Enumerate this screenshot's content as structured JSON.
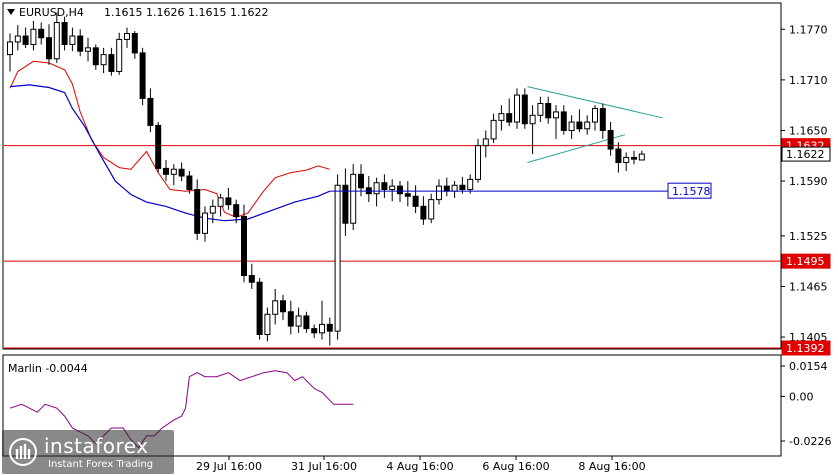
{
  "header": {
    "symbol": "EURUSD,H4",
    "ohlc": "1.1615 1.1626 1.1615 1.1622"
  },
  "indicator": {
    "label": "Marlin -0.0044",
    "ticks": [
      "0.0154",
      "0.00",
      "-0.0226"
    ],
    "color": "#8b008b"
  },
  "logo": {
    "brand": "instaforex",
    "tagline": "Instant Forex Trading"
  },
  "colors": {
    "bull": "#ffffff",
    "bear": "#000000",
    "level": "#e00000",
    "ma_slow": "#0000cc",
    "envelope": "#e00000",
    "triangle": "#2aa198",
    "axis": "#000000"
  },
  "chart_data": {
    "type": "candlestick",
    "title": "EURUSD,H4",
    "price_ticks": [
      "1.1770",
      "1.1710",
      "1.1650",
      "1.1590",
      "1.1525",
      "1.1465",
      "1.1405"
    ],
    "date_ticks": [
      "29 Jul 16:00",
      "31 Jul 16:00",
      "4 Aug 16:00",
      "6 Aug 16:00",
      "8 Aug 16:00"
    ],
    "ylim": [
      1.1392,
      1.18
    ],
    "levels": [
      {
        "label": "1.1632",
        "value": 1.1632
      },
      {
        "label": "1.1495",
        "value": 1.1495
      },
      {
        "label": "1.1392",
        "value": 1.1392
      }
    ],
    "current_price": {
      "label": "1.1622",
      "value": 1.1622
    },
    "ma_label": {
      "label": "1.1578",
      "value": 1.1578
    },
    "candles": [
      [
        1.174,
        1.1765,
        1.172,
        1.1755
      ],
      [
        1.1755,
        1.1775,
        1.1745,
        1.1762
      ],
      [
        1.1762,
        1.1772,
        1.1748,
        1.1752
      ],
      [
        1.1752,
        1.178,
        1.1745,
        1.177
      ],
      [
        1.177,
        1.1778,
        1.1752,
        1.176
      ],
      [
        1.176,
        1.1776,
        1.1728,
        1.1735
      ],
      [
        1.1735,
        1.179,
        1.173,
        1.1778
      ],
      [
        1.1778,
        1.1785,
        1.1745,
        1.1752
      ],
      [
        1.1752,
        1.1772,
        1.1744,
        1.1762
      ],
      [
        1.1762,
        1.177,
        1.1738,
        1.1744
      ],
      [
        1.1744,
        1.176,
        1.1732,
        1.1748
      ],
      [
        1.1748,
        1.1752,
        1.1722,
        1.1728
      ],
      [
        1.1728,
        1.1748,
        1.1718,
        1.174
      ],
      [
        1.174,
        1.1748,
        1.1715,
        1.172
      ],
      [
        1.172,
        1.1766,
        1.1716,
        1.1758
      ],
      [
        1.1758,
        1.1772,
        1.1748,
        1.1765
      ],
      [
        1.1765,
        1.1768,
        1.1735,
        1.1742
      ],
      [
        1.1742,
        1.1748,
        1.168,
        1.1688
      ],
      [
        1.1688,
        1.17,
        1.1648,
        1.1656
      ],
      [
        1.1656,
        1.166,
        1.16,
        1.1605
      ],
      [
        1.1605,
        1.1615,
        1.159,
        1.1598
      ],
      [
        1.1598,
        1.161,
        1.1585,
        1.1604
      ],
      [
        1.1604,
        1.1612,
        1.159,
        1.1596
      ],
      [
        1.1596,
        1.1602,
        1.1575,
        1.158
      ],
      [
        1.158,
        1.1592,
        1.152,
        1.1528
      ],
      [
        1.1528,
        1.156,
        1.1518,
        1.1552
      ],
      [
        1.1552,
        1.1568,
        1.154,
        1.156
      ],
      [
        1.156,
        1.1575,
        1.1548,
        1.157
      ],
      [
        1.157,
        1.1582,
        1.1556,
        1.1562
      ],
      [
        1.1562,
        1.1568,
        1.154,
        1.1548
      ],
      [
        1.1548,
        1.1562,
        1.147,
        1.1478
      ],
      [
        1.1478,
        1.1492,
        1.1462,
        1.147
      ],
      [
        1.147,
        1.1475,
        1.1402,
        1.1408
      ],
      [
        1.1408,
        1.144,
        1.14,
        1.1432
      ],
      [
        1.1432,
        1.1462,
        1.142,
        1.1448
      ],
      [
        1.1448,
        1.1455,
        1.1425,
        1.1435
      ],
      [
        1.1435,
        1.1448,
        1.1408,
        1.1418
      ],
      [
        1.1418,
        1.144,
        1.141,
        1.143
      ],
      [
        1.143,
        1.1435,
        1.141,
        1.1415
      ],
      [
        1.1415,
        1.142,
        1.1404,
        1.141
      ],
      [
        1.141,
        1.1448,
        1.1402,
        1.142
      ],
      [
        1.142,
        1.1428,
        1.1395,
        1.1412
      ],
      [
        1.1412,
        1.1598,
        1.1402,
        1.1585
      ],
      [
        1.1585,
        1.1605,
        1.1525,
        1.154
      ],
      [
        1.154,
        1.161,
        1.1532,
        1.1598
      ],
      [
        1.1598,
        1.161,
        1.1572,
        1.1582
      ],
      [
        1.1582,
        1.1596,
        1.1565,
        1.1575
      ],
      [
        1.1575,
        1.1594,
        1.156,
        1.1588
      ],
      [
        1.1588,
        1.1598,
        1.157,
        1.158
      ],
      [
        1.158,
        1.1592,
        1.1566,
        1.1584
      ],
      [
        1.1584,
        1.159,
        1.1565,
        1.1575
      ],
      [
        1.1575,
        1.159,
        1.156,
        1.1572
      ],
      [
        1.1572,
        1.1585,
        1.1552,
        1.156
      ],
      [
        1.156,
        1.1572,
        1.1538,
        1.1545
      ],
      [
        1.1545,
        1.1575,
        1.154,
        1.1568
      ],
      [
        1.1568,
        1.1592,
        1.1562,
        1.1584
      ],
      [
        1.1584,
        1.1594,
        1.1572,
        1.1578
      ],
      [
        1.1578,
        1.159,
        1.157,
        1.1585
      ],
      [
        1.1585,
        1.1595,
        1.1575,
        1.158
      ],
      [
        1.158,
        1.1598,
        1.1575,
        1.1592
      ],
      [
        1.1592,
        1.164,
        1.1588,
        1.1632
      ],
      [
        1.1632,
        1.165,
        1.1618,
        1.164
      ],
      [
        1.164,
        1.167,
        1.1635,
        1.1662
      ],
      [
        1.1662,
        1.168,
        1.165,
        1.167
      ],
      [
        1.167,
        1.1688,
        1.1655,
        1.166
      ],
      [
        1.166,
        1.17,
        1.1652,
        1.1692
      ],
      [
        1.1692,
        1.17,
        1.1652,
        1.1658
      ],
      [
        1.1658,
        1.168,
        1.1622,
        1.1668
      ],
      [
        1.1668,
        1.169,
        1.166,
        1.1682
      ],
      [
        1.1682,
        1.169,
        1.1658,
        1.1665
      ],
      [
        1.1665,
        1.168,
        1.164,
        1.1672
      ],
      [
        1.1672,
        1.168,
        1.1645,
        1.165
      ],
      [
        1.165,
        1.1668,
        1.164,
        1.166
      ],
      [
        1.166,
        1.1675,
        1.1648,
        1.1652
      ],
      [
        1.1652,
        1.1668,
        1.1645,
        1.166
      ],
      [
        1.166,
        1.168,
        1.165,
        1.1676
      ],
      [
        1.1676,
        1.1682,
        1.164,
        1.165
      ],
      [
        1.165,
        1.166,
        1.162,
        1.1628
      ],
      [
        1.1628,
        1.1636,
        1.16,
        1.1612
      ],
      [
        1.1612,
        1.1624,
        1.1602,
        1.1618
      ],
      [
        1.1618,
        1.1626,
        1.161,
        1.1616
      ],
      [
        1.1615,
        1.1626,
        1.1615,
        1.1622
      ]
    ],
    "ma_slow": [
      [
        0,
        1.1702
      ],
      [
        10,
        1.1704
      ],
      [
        20,
        1.1701
      ],
      [
        28,
        1.1695
      ],
      [
        32,
        1.1676
      ],
      [
        38,
        1.1656
      ],
      [
        46,
        1.1622
      ],
      [
        54,
        1.159
      ],
      [
        62,
        1.1574
      ],
      [
        70,
        1.1565
      ],
      [
        80,
        1.156
      ],
      [
        90,
        1.1552
      ],
      [
        100,
        1.1546
      ],
      [
        110,
        1.1543
      ],
      [
        122,
        1.1545
      ],
      [
        134,
        1.1555
      ],
      [
        146,
        1.1565
      ],
      [
        158,
        1.1572
      ],
      [
        164,
        1.1578
      ]
    ],
    "envelope": [
      [
        0,
        1.17
      ],
      [
        4,
        1.172
      ],
      [
        12,
        1.1732
      ],
      [
        20,
        1.173
      ],
      [
        28,
        1.1722
      ],
      [
        32,
        1.1705
      ],
      [
        36,
        1.1672
      ],
      [
        42,
        1.1638
      ],
      [
        48,
        1.1618
      ],
      [
        56,
        1.1606
      ],
      [
        62,
        1.1604
      ],
      [
        70,
        1.1625
      ],
      [
        76,
        1.16
      ],
      [
        82,
        1.158
      ],
      [
        90,
        1.1578
      ],
      [
        100,
        1.158
      ],
      [
        106,
        1.1575
      ],
      [
        110,
        1.1553
      ],
      [
        116,
        1.1547
      ],
      [
        122,
        1.1552
      ],
      [
        130,
        1.1578
      ],
      [
        136,
        1.1594
      ],
      [
        144,
        1.16
      ],
      [
        152,
        1.1603
      ],
      [
        158,
        1.1608
      ],
      [
        164,
        1.1604
      ]
    ],
    "triangle": {
      "upper": [
        [
          138,
          1.1702
        ],
        [
          174,
          1.1665
        ]
      ],
      "lower": [
        [
          138,
          1.1612
        ],
        [
          164,
          1.1645
        ]
      ]
    },
    "marlin": [
      [
        0,
        -0.006
      ],
      [
        6,
        -0.004
      ],
      [
        10,
        -0.006
      ],
      [
        14,
        -0.008
      ],
      [
        18,
        -0.004
      ],
      [
        24,
        -0.006
      ],
      [
        28,
        -0.01
      ],
      [
        32,
        -0.016
      ],
      [
        36,
        -0.018
      ],
      [
        40,
        -0.02
      ],
      [
        44,
        -0.024
      ],
      [
        48,
        -0.02
      ],
      [
        52,
        -0.016
      ],
      [
        58,
        -0.016
      ],
      [
        62,
        -0.022
      ],
      [
        66,
        -0.026
      ],
      [
        70,
        -0.02
      ],
      [
        74,
        -0.02
      ],
      [
        78,
        -0.016
      ],
      [
        84,
        -0.012
      ],
      [
        88,
        -0.01
      ],
      [
        90,
        -0.006
      ],
      [
        92,
        0.01
      ],
      [
        96,
        0.012
      ],
      [
        100,
        0.01
      ],
      [
        106,
        0.01
      ],
      [
        112,
        0.012
      ],
      [
        118,
        0.008
      ],
      [
        124,
        0.01
      ],
      [
        130,
        0.012
      ],
      [
        136,
        0.013
      ],
      [
        142,
        0.012
      ],
      [
        146,
        0.008
      ],
      [
        150,
        0.01
      ],
      [
        156,
        0.004
      ],
      [
        160,
        0.002
      ],
      [
        166,
        -0.004
      ],
      [
        170,
        -0.004
      ],
      [
        176,
        -0.004
      ]
    ]
  }
}
